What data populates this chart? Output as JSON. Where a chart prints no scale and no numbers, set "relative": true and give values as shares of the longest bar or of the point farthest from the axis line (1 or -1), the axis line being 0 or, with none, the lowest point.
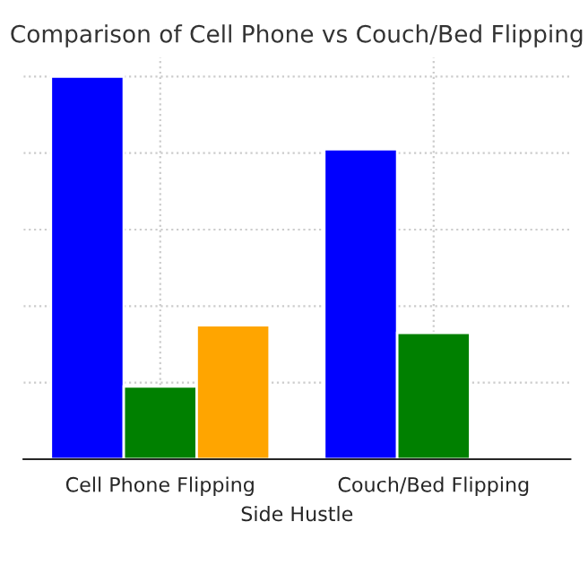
{
  "chart_data": {
    "type": "bar",
    "relative": true,
    "title": "Comparison of Cell Phone vs Couch/Bed Flipping",
    "xlabel": "Side Hustle",
    "categories": [
      "Cell Phone Flipping",
      "Couch/Bed Flipping"
    ],
    "series": [
      {
        "color": "#0000ff",
        "values": [
          1,
          0.81
        ]
      },
      {
        "color": "#008000",
        "values": [
          0.19,
          0.33
        ]
      },
      {
        "color": "#ffa500",
        "values": [
          0.35,
          null
        ]
      }
    ],
    "grid": true
  }
}
